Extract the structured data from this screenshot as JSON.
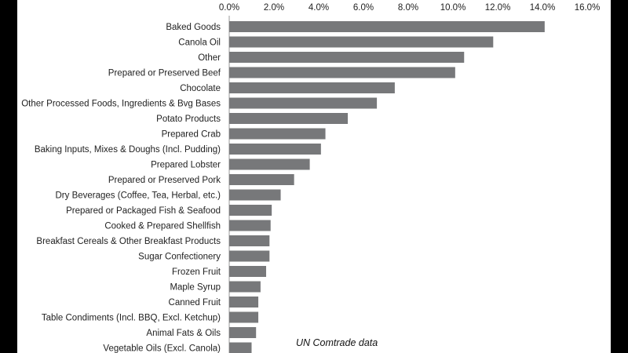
{
  "chart_data": {
    "type": "bar",
    "orientation": "horizontal",
    "title": "",
    "xlabel": "",
    "ylabel": "",
    "xlim": [
      0,
      16
    ],
    "x_ticks": [
      "0.0%",
      "2.0%",
      "4.0%",
      "6.0%",
      "8.0%",
      "10.0%",
      "12.0%",
      "14.0%",
      "16.0%"
    ],
    "x_axis_position": "top",
    "grid": false,
    "legend": "none",
    "bar_color": "#77787a",
    "categories": [
      "Baked Goods",
      "Canola Oil",
      "Other",
      "Prepared or Preserved Beef",
      "Chocolate",
      "Other Processed Foods, Ingredients & Bvg Bases",
      "Potato Products",
      "Prepared Crab",
      "Baking Inputs, Mixes & Doughs (Incl. Pudding)",
      "Prepared Lobster",
      "Prepared or Preserved Pork",
      "Dry Beverages (Coffee, Tea, Herbal, etc.)",
      "Prepared or Packaged Fish & Seafood",
      "Cooked & Prepared Shellfish",
      "Breakfast Cereals & Other Breakfast Products",
      "Sugar Confectionery",
      "Frozen Fruit",
      "Maple Syrup",
      "Canned Fruit",
      "Table Condiments (Incl. BBQ, Excl. Ketchup)",
      "Animal Fats & Oils",
      "Vegetable Oils (Excl. Canola)"
    ],
    "values": [
      14.1,
      11.8,
      10.5,
      10.1,
      7.4,
      6.6,
      5.3,
      4.3,
      4.1,
      3.6,
      2.9,
      2.3,
      1.9,
      1.85,
      1.8,
      1.8,
      1.65,
      1.4,
      1.3,
      1.3,
      1.2,
      1.0
    ]
  },
  "source_note": "UN Comtrade data"
}
